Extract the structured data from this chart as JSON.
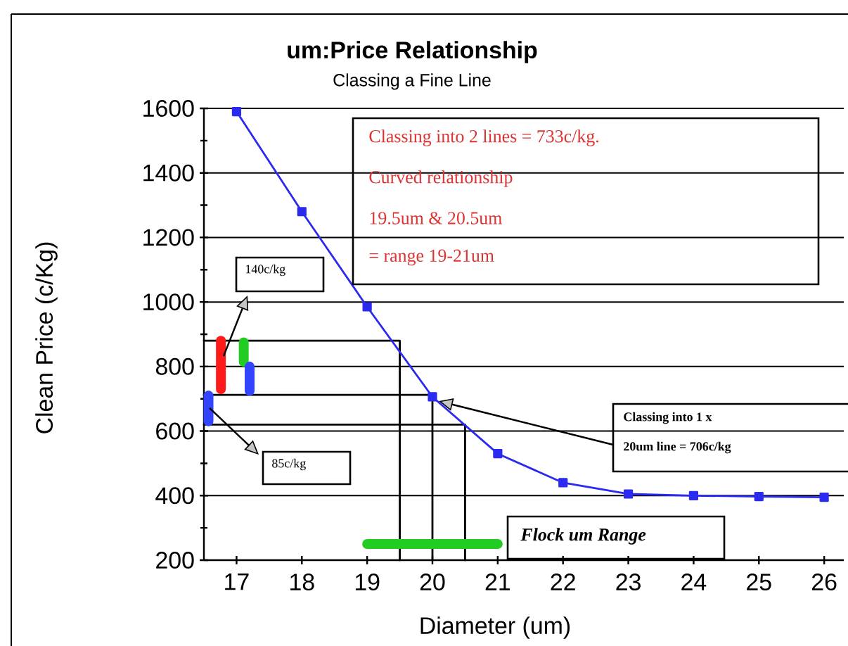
{
  "chart_data": {
    "type": "line",
    "title": "um:Price Relationship",
    "subtitle": "Classing a Fine Line",
    "xlabel": "Diameter (um)",
    "ylabel": "Clean Price (c/Kg)",
    "xlim": [
      16.5,
      26.3
    ],
    "xticks": [
      17,
      18,
      19,
      20,
      21,
      22,
      23,
      24,
      25,
      26
    ],
    "ylim": [
      200,
      1600
    ],
    "yticks": [
      200,
      {
        "value": 300,
        "label": null
      },
      400,
      {
        "value": 500,
        "label": null
      },
      600,
      {
        "value": 700,
        "label": null
      },
      800,
      {
        "value": 900,
        "label": null
      },
      1000,
      {
        "value": 1100,
        "label": null
      },
      1200,
      {
        "value": 1300,
        "label": null
      },
      1400,
      {
        "value": 1500,
        "label": null
      },
      1600
    ],
    "grid": "y",
    "series": [
      {
        "type": "line",
        "color": "#000000",
        "marker": "none",
        "x": [
          16.5,
          19.5,
          19.5
        ],
        "values": [
          880,
          880,
          200
        ]
      },
      {
        "type": "line",
        "color": "#000000",
        "marker": "none",
        "x": [
          16.5,
          20,
          20
        ],
        "values": [
          712,
          712,
          200
        ]
      },
      {
        "type": "line",
        "color": "#000000",
        "marker": "none",
        "x": [
          16.5,
          20.5,
          20.5
        ],
        "values": [
          620,
          620,
          200
        ]
      },
      {
        "type": "bar",
        "color": "#ff1a1a",
        "x": [
          16.76
        ],
        "base": [
          730
        ],
        "values": [
          150
        ]
      },
      {
        "type": "bar",
        "color": "#22cc22",
        "x": [
          17.11
        ],
        "base": [
          815
        ],
        "values": [
          60
        ]
      },
      {
        "type": "bar",
        "color": "#3344ff",
        "x": [
          16.57,
          17.2
        ],
        "base": [
          630,
          725
        ],
        "values": [
          80,
          75
        ]
      },
      {
        "type": "line",
        "color": "#2a2af0",
        "marker": "square",
        "x": [
          17,
          18,
          19,
          20,
          21,
          22,
          23,
          24,
          25,
          26
        ],
        "values": [
          1590,
          1280,
          985,
          706,
          530,
          440,
          405,
          400,
          397,
          395
        ]
      },
      {
        "color": "#22cc22",
        "marker": "none",
        "x": [
          19,
          21
        ],
        "values": [
          250,
          250
        ]
      }
    ],
    "annotations": [
      "Classing into 2 lines = 733c/kg.",
      "Curved relationship",
      "19.5um  & 20.5um",
      "= range 19-21um",
      "140c/kg",
      "85c/kg",
      "Classing into 1 x",
      "20um line = 706c/kg",
      "Flock um Range"
    ]
  }
}
